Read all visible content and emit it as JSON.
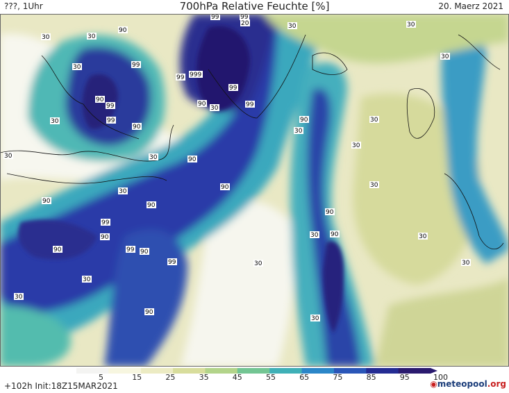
{
  "header": {
    "left": "???, 1Uhr",
    "title": "700hPa Relative Feuchte [%]",
    "date": "20. Maerz 2021"
  },
  "footer": {
    "run": "+102h Init:18Z15MAR2021",
    "logo_main": "meteopool",
    "logo_suffix": ".org",
    "logo_icon": "meteopool-logo-icon"
  },
  "legend": {
    "ticks": [
      "5",
      "15",
      "25",
      "35",
      "45",
      "55",
      "65",
      "75",
      "85",
      "95",
      "100"
    ],
    "colors": [
      "#f4f4f2",
      "#f7f6e0",
      "#ecebc3",
      "#d8dd9c",
      "#b3d48a",
      "#73c593",
      "#3fb0b7",
      "#2b86c8",
      "#2a56b8",
      "#242c93",
      "#2a1a6f"
    ]
  },
  "map_labels": [
    {
      "text": "90"
    },
    {
      "text": "99"
    },
    {
      "text": "99"
    },
    {
      "text": "20"
    },
    {
      "text": "30"
    },
    {
      "text": "30"
    },
    {
      "text": "30"
    },
    {
      "text": "99"
    },
    {
      "text": "999"
    },
    {
      "text": "99"
    },
    {
      "text": "90"
    },
    {
      "text": "30"
    },
    {
      "text": "99"
    },
    {
      "text": "99"
    },
    {
      "text": "90"
    },
    {
      "text": "99"
    },
    {
      "text": "99"
    },
    {
      "text": "90"
    },
    {
      "text": "30"
    },
    {
      "text": "30"
    },
    {
      "text": "30"
    },
    {
      "text": "30"
    },
    {
      "text": "30"
    },
    {
      "text": "90"
    },
    {
      "text": "30"
    },
    {
      "text": "90"
    },
    {
      "text": "30"
    },
    {
      "text": "90"
    },
    {
      "text": "30"
    },
    {
      "text": "90"
    },
    {
      "text": "99"
    },
    {
      "text": "90"
    },
    {
      "text": "30"
    },
    {
      "text": "90"
    },
    {
      "text": "99"
    },
    {
      "text": "90"
    },
    {
      "text": "99"
    },
    {
      "text": "30"
    },
    {
      "text": "90"
    },
    {
      "text": "30"
    },
    {
      "text": "30"
    },
    {
      "text": "30"
    },
    {
      "text": "90"
    },
    {
      "text": "30"
    },
    {
      "text": "90"
    },
    {
      "text": "30"
    },
    {
      "text": "30"
    },
    {
      "text": "30"
    },
    {
      "text": "90"
    },
    {
      "text": "30"
    }
  ]
}
